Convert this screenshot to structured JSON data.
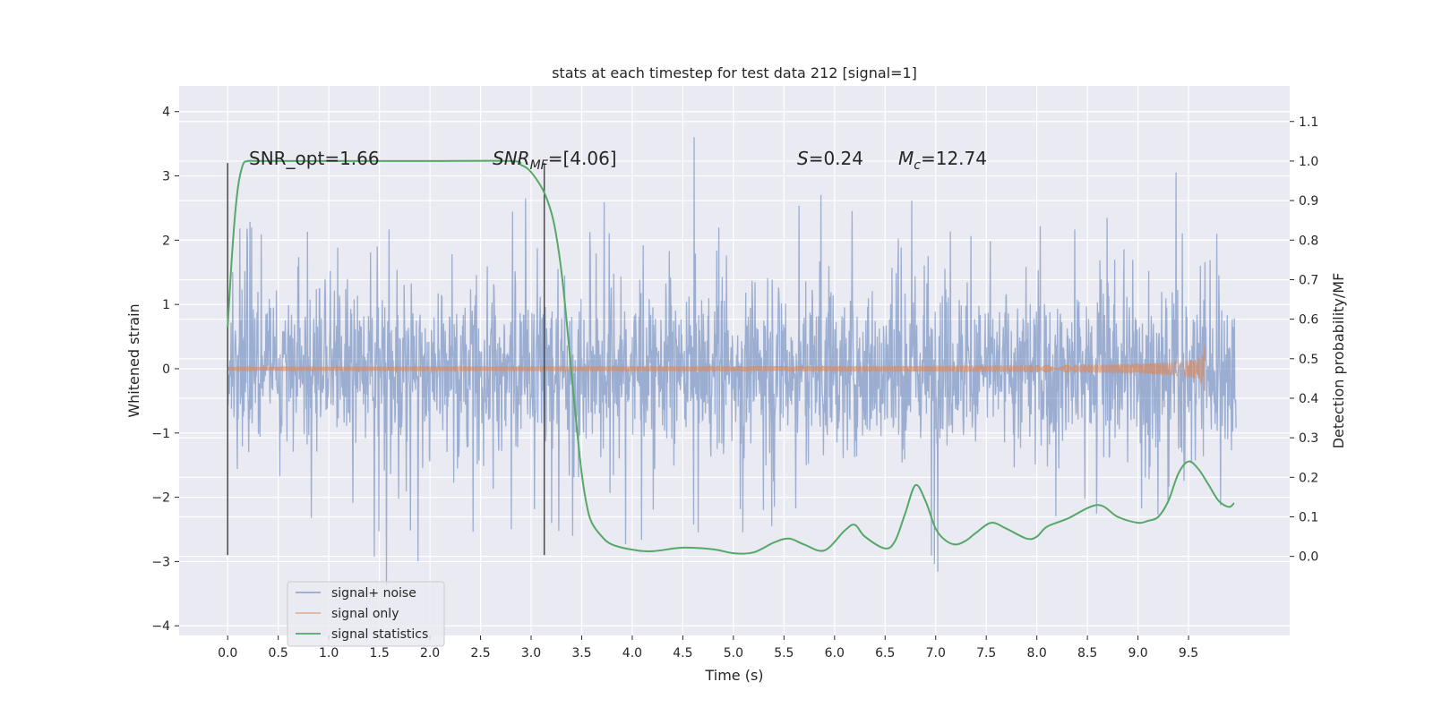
{
  "chart_data": {
    "type": "line",
    "title": "stats at each timestep for test data 212 [signal=1]",
    "xlabel": "Time (s)",
    "ylabel": "Whitened strain",
    "y2label": "Detection probability/MF",
    "xlim": [
      -0.48,
      10.5
    ],
    "ylim": [
      -4.15,
      4.4
    ],
    "y2lim": [
      -0.2,
      1.19
    ],
    "grid": true,
    "x_ticks": [
      "0.0",
      "0.5",
      "1.0",
      "1.5",
      "2.0",
      "2.5",
      "3.0",
      "3.5",
      "4.0",
      "4.5",
      "5.0",
      "5.5",
      "6.0",
      "6.5",
      "7.0",
      "7.5",
      "8.0",
      "8.5",
      "9.0",
      "9.5"
    ],
    "y_ticks": [
      "4",
      "3",
      "2",
      "1",
      "0",
      "−1",
      "−2",
      "−3",
      "−4"
    ],
    "y2_ticks": [
      "1.1",
      "1.0",
      "0.9",
      "0.8",
      "0.7",
      "0.6",
      "0.5",
      "0.4",
      "0.3",
      "0.2",
      "0.1",
      "0.0"
    ],
    "legend": {
      "placement": "lower-left"
    },
    "annotations": {
      "snr_opt": "SNR_opt=1.66",
      "snr_mf_base": "SNR",
      "snr_mf_sub": "MF",
      "snr_mf_value": "=[4.06]",
      "s_base": "S",
      "s_value": "=0.24",
      "mc_base": "M",
      "mc_sub": "c",
      "mc_value": "=12.74"
    },
    "vlines": [
      {
        "x": 0.0,
        "y_range": [
          -2.9,
          3.2
        ]
      },
      {
        "x": 3.13,
        "y_range": [
          -2.9,
          3.2
        ]
      }
    ],
    "series": [
      {
        "name": "signal+ noise",
        "color": "#4c72b0",
        "axis": "left",
        "x_range": [
          0.0,
          9.97
        ],
        "envelope": {
          "core_amplitude": 1.4,
          "peak_max": 3.8,
          "peak_min": -3.7
        }
      },
      {
        "name": "signal only",
        "color": "#dd8452",
        "axis": "left",
        "x_range": [
          0.0,
          9.66
        ],
        "chirp": {
          "end_amplitude": 0.35,
          "chirp_time": 9.66
        }
      },
      {
        "name": "signal statistics",
        "color": "#55a868",
        "axis": "right",
        "x": [
          0.0,
          0.05,
          0.1,
          0.15,
          0.2,
          0.3,
          0.5,
          1.0,
          2.0,
          2.8,
          2.9,
          2.97,
          3.05,
          3.13,
          3.2,
          3.25,
          3.3,
          3.35,
          3.4,
          3.45,
          3.5,
          3.55,
          3.6,
          3.7,
          3.8,
          4.0,
          4.2,
          4.5,
          4.8,
          5.0,
          5.2,
          5.4,
          5.55,
          5.7,
          5.9,
          6.1,
          6.2,
          6.3,
          6.5,
          6.6,
          6.7,
          6.8,
          6.9,
          7.0,
          7.1,
          7.2,
          7.3,
          7.4,
          7.55,
          7.7,
          7.9,
          8.0,
          8.1,
          8.3,
          8.6,
          8.8,
          9.0,
          9.1,
          9.2,
          9.3,
          9.4,
          9.5,
          9.6,
          9.7,
          9.8,
          9.9,
          9.95
        ],
        "values": [
          0.58,
          0.79,
          0.93,
          0.99,
          1.0,
          1.0,
          1.0,
          1.0,
          1.0,
          1.0,
          0.99,
          0.98,
          0.955,
          0.92,
          0.87,
          0.81,
          0.72,
          0.6,
          0.46,
          0.33,
          0.21,
          0.13,
          0.085,
          0.05,
          0.03,
          0.017,
          0.013,
          0.022,
          0.018,
          0.008,
          0.01,
          0.035,
          0.045,
          0.03,
          0.015,
          0.065,
          0.08,
          0.05,
          0.02,
          0.04,
          0.11,
          0.18,
          0.14,
          0.07,
          0.04,
          0.03,
          0.04,
          0.06,
          0.085,
          0.07,
          0.045,
          0.05,
          0.075,
          0.095,
          0.13,
          0.1,
          0.085,
          0.09,
          0.1,
          0.14,
          0.21,
          0.24,
          0.22,
          0.18,
          0.14,
          0.125,
          0.135
        ]
      }
    ]
  }
}
